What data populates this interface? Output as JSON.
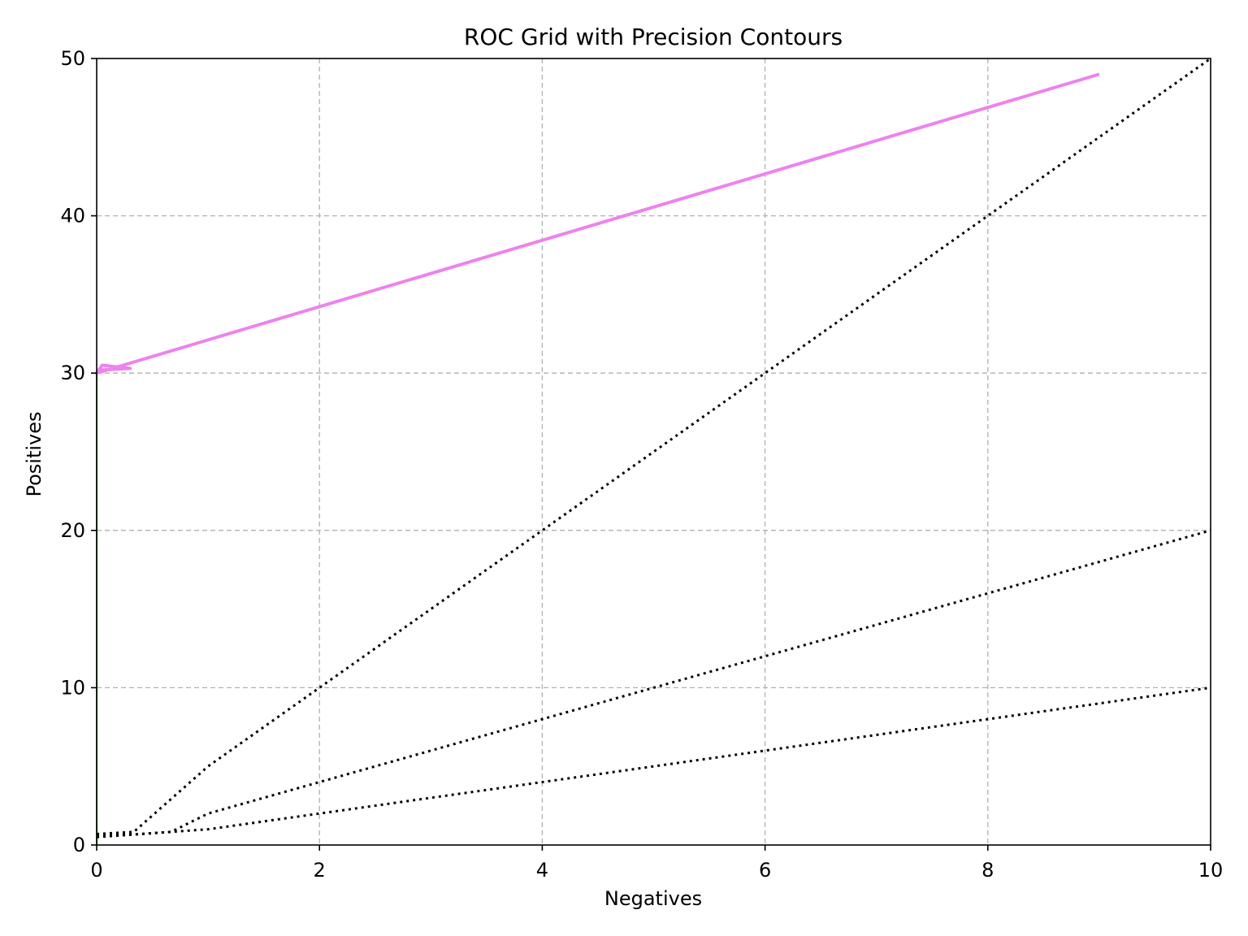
{
  "chart_data": {
    "type": "line",
    "title": "ROC Grid with Precision Contours",
    "xlabel": "Negatives",
    "ylabel": "Positives",
    "xlim": [
      0,
      10
    ],
    "ylim": [
      0,
      50
    ],
    "x_ticks": [
      0,
      2,
      4,
      6,
      8,
      10
    ],
    "y_ticks": [
      0,
      10,
      20,
      30,
      40,
      50
    ],
    "grid": true,
    "legend": "none",
    "contours": [
      {
        "x": [
          0,
          0.333,
          1,
          2,
          4,
          6,
          8,
          10
        ],
        "y": [
          0.5,
          0.667,
          1,
          2,
          4,
          6,
          8,
          10
        ]
      },
      {
        "x": [
          0,
          0.333,
          0.667,
          1,
          2,
          4,
          6,
          8,
          10
        ],
        "y": [
          0.6,
          0.667,
          0.833,
          2,
          4,
          8,
          12,
          16,
          20
        ]
      },
      {
        "x": [
          0,
          0.333,
          1,
          2,
          4,
          6,
          8,
          10
        ],
        "y": [
          0.7,
          0.833,
          5,
          10,
          20,
          30,
          40,
          50
        ]
      }
    ],
    "series": [
      {
        "color": "#00a000",
        "x": [
          0,
          0
        ],
        "y": [
          0,
          30
        ]
      },
      {
        "color": "#ee82ee",
        "x": [
          0,
          0.05,
          0.3,
          0.05,
          0,
          9
        ],
        "y": [
          30,
          30.5,
          30.3,
          30.2,
          30,
          49
        ]
      }
    ]
  }
}
